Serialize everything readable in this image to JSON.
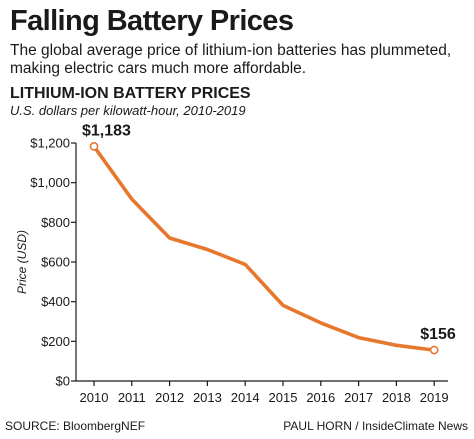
{
  "header": {
    "headline": "Falling Battery Prices",
    "subhead": "The global average price of lithium-ion batteries has plummeted, making electric cars much more affordable."
  },
  "chart_data": {
    "type": "line",
    "title": "LITHIUM-ION BATTERY PRICES",
    "subtitle": "U.S. dollars per kilowatt-hour, 2010-2019",
    "xlabel": "",
    "ylabel": "Price (USD)",
    "x": [
      2010,
      2011,
      2012,
      2013,
      2014,
      2015,
      2016,
      2017,
      2018,
      2019
    ],
    "series": [
      {
        "values": [
          1183,
          917,
          721,
          663,
          588,
          381,
          293,
          219,
          180,
          156
        ]
      }
    ],
    "ylim": [
      0,
      1200
    ],
    "yticks": [
      "$0",
      "$200",
      "$400",
      "$600",
      "$800",
      "$1,000",
      "$1,200"
    ],
    "xticks": [
      "2010",
      "2011",
      "2012",
      "2013",
      "2014",
      "2015",
      "2016",
      "2017",
      "2018",
      "2019"
    ],
    "annotations": [
      {
        "index": 0,
        "label": "$1,183"
      },
      {
        "index": 9,
        "label": "$156"
      }
    ],
    "grid": false,
    "colors": {
      "line": "#e8772e",
      "axis": "#1a1a1a",
      "marker_fill": "#ffffff"
    }
  },
  "footer": {
    "source": "SOURCE: BloombergNEF",
    "credit": "PAUL HORN / InsideClimate News"
  }
}
